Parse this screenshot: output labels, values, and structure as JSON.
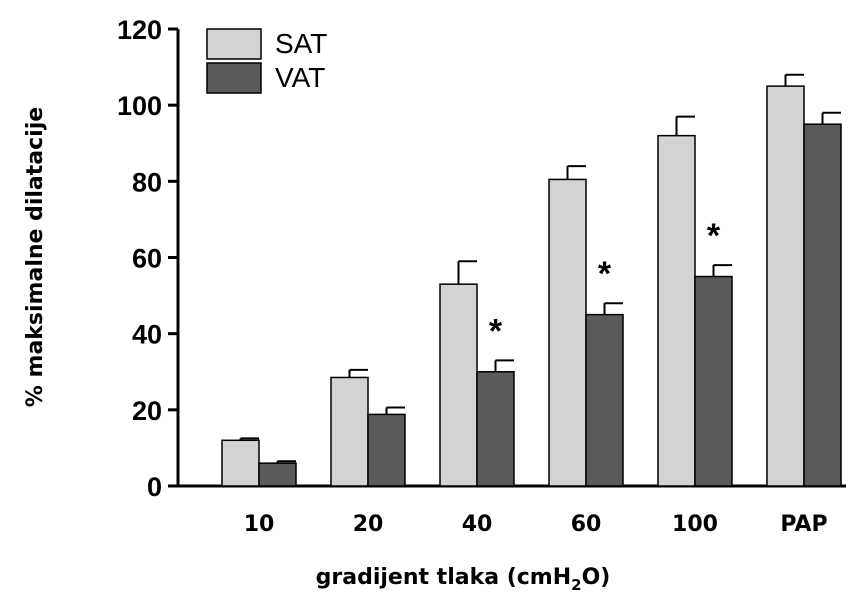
{
  "chart_data": {
    "type": "bar",
    "categories": [
      "10",
      "20",
      "40",
      "60",
      "100",
      "PAP"
    ],
    "series": [
      {
        "name": "SAT",
        "color": "#d3d3d3",
        "values": [
          12,
          28.5,
          53,
          80.5,
          92,
          105
        ],
        "errors": [
          0.5,
          2,
          6,
          3.5,
          5,
          3
        ]
      },
      {
        "name": "VAT",
        "color": "#5a5a5a",
        "values": [
          6,
          18.8,
          30,
          45,
          55,
          95
        ],
        "errors": [
          0.5,
          1.8,
          3,
          3,
          3,
          3
        ]
      }
    ],
    "significance": [
      {
        "category_index": 2,
        "label": "*"
      },
      {
        "category_index": 3,
        "label": "*"
      },
      {
        "category_index": 4,
        "label": "*"
      }
    ],
    "ylim": [
      0,
      120
    ],
    "yticks": [
      0,
      20,
      40,
      60,
      80,
      100,
      120
    ],
    "ylabel": "% maksimalne dilatacije",
    "xlabel_prefix": "gradijent tlaka (cmH",
    "xlabel_sub": "2",
    "xlabel_suffix": "O)",
    "legend_position": "top-left",
    "grid": false
  }
}
